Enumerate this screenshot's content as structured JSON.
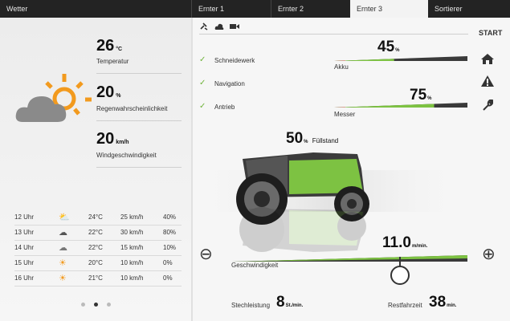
{
  "tabs": {
    "wetter": "Wetter",
    "ernter1": "Ernter 1",
    "ernter2": "Ernter 2",
    "ernter3": "Ernter 3",
    "sortierer": "Sortierer"
  },
  "weather": {
    "temperature": {
      "value": "26",
      "unit": "°C",
      "label": "Temperatur"
    },
    "rain": {
      "value": "20",
      "unit": "%",
      "label": "Regenwahrscheinlichkeit"
    },
    "wind": {
      "value": "20",
      "unit": "km/h",
      "label": "Windgeschwindigkeit"
    },
    "icon": "partly-cloudy-icon"
  },
  "forecast": [
    {
      "time": "12 Uhr",
      "icon": "partly-cloudy-icon",
      "temp": "24°C",
      "wind": "25 km/h",
      "rain": "40%"
    },
    {
      "time": "13 Uhr",
      "icon": "rain-cloud-icon",
      "temp": "22°C",
      "wind": "30 km/h",
      "rain": "80%"
    },
    {
      "time": "14 Uhr",
      "icon": "cloud-icon",
      "temp": "22°C",
      "wind": "15 km/h",
      "rain": "10%"
    },
    {
      "time": "15 Uhr",
      "icon": "sun-icon",
      "temp": "20°C",
      "wind": "10 km/h",
      "rain": "0%"
    },
    {
      "time": "16 Uhr",
      "icon": "sun-icon",
      "temp": "21°C",
      "wind": "10 km/h",
      "rain": "0%"
    }
  ],
  "pager": {
    "count": 3,
    "active_index": 1
  },
  "machine": {
    "top_icons": [
      "satellite-icon",
      "cloud-icon",
      "camera-icon"
    ],
    "checks": [
      {
        "label": "Schneidewerk"
      },
      {
        "label": "Navigation"
      },
      {
        "label": "Antrieb"
      }
    ],
    "akku": {
      "value": "45",
      "unit": "%",
      "label": "Akku",
      "fraction": 0.45
    },
    "messer": {
      "value": "75",
      "unit": "%",
      "label": "Messer",
      "fraction": 0.75
    },
    "fill": {
      "value": "50",
      "unit": "%",
      "label": "Füllstand",
      "fraction": 0.5
    },
    "speed": {
      "value": "11.0",
      "unit": "m/min.",
      "label": "Geschwindigkeit",
      "minus": "⊖",
      "plus": "⊕"
    },
    "stechleistung": {
      "label": "Stechleistung",
      "value": "8",
      "unit": "St./min."
    },
    "restfahrzeit": {
      "label": "Restfahrzeit",
      "value": "38",
      "unit": "min."
    },
    "side_icons": {
      "start": "START",
      "home": "home-icon",
      "warning": "warning-icon",
      "wrench": "wrench-icon"
    }
  },
  "colors": {
    "accent_green": "#7dc242",
    "warn_red": "#c0392b",
    "tabbar": "#232323"
  }
}
